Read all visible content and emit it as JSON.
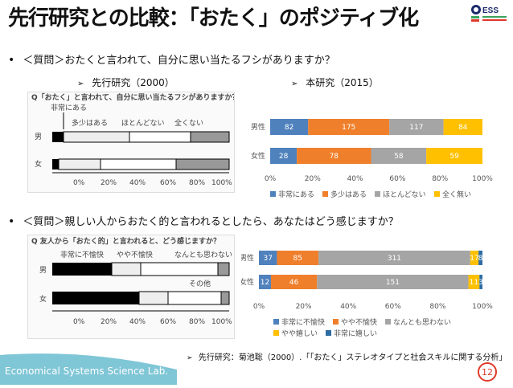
{
  "slide": {
    "title": "先行研究との比較：「おたく」のポジティブ化",
    "logo": {
      "text": "ESS",
      "colors": [
        "#1b2a6b",
        "#3aa35b",
        "#e0392a"
      ]
    },
    "page_number": "12",
    "footer_text": "Economical Systems Science Lab.",
    "footer_color": "#7fc6d6"
  },
  "q1": {
    "bullet": "•",
    "text": "＜質問＞おたくと言われて、自分に思い当たるフシがありますか？",
    "prev_label": "先行研究（2000）",
    "curr_label": "本研究（2015）",
    "scan": {
      "header": "Q「おたく」と言われて、自分に思い当たるフシがありますか？",
      "row_labels": [
        "男",
        "女"
      ],
      "legend_labels": [
        "非常にある",
        "多少はある",
        "ほとんどない",
        "全くない"
      ],
      "axis_labels": [
        "0%",
        "20%",
        "40%",
        "60%",
        "80%",
        "100%"
      ]
    }
  },
  "q2": {
    "bullet": "•",
    "text": "＜質問＞親しい人からおたく的と言われるとしたら、あなたはどう感じますか？",
    "scan": {
      "header": "Q 友人から「おたく的」と言われると、どう感じますか？",
      "row_labels": [
        "男",
        "女"
      ],
      "legend_labels": [
        "非常に不愉快",
        "やや不愉快",
        "なんとも思わない",
        "その他"
      ],
      "axis_labels": [
        "0%",
        "20%",
        "40%",
        "60%",
        "80%",
        "100%"
      ]
    },
    "reference": "先行研究：菊池聡（2000）.「「おたく」ステレオタイプと社会スキルに関する分析」"
  },
  "chart_data": [
    {
      "type": "bar",
      "stacked": true,
      "orientation": "horizontal",
      "percent_scale": true,
      "categories": [
        "男性",
        "女性"
      ],
      "series": [
        {
          "name": "非常にある",
          "values": [
            82,
            28
          ],
          "color": "#4f81bd"
        },
        {
          "name": "多少はある",
          "values": [
            175,
            78
          ],
          "color": "#f07f2b"
        },
        {
          "name": "ほとんどない",
          "values": [
            117,
            58
          ],
          "color": "#a5a5a5"
        },
        {
          "name": "全く無い",
          "values": [
            84,
            59
          ],
          "color": "#ffc000"
        }
      ],
      "xticks": [
        "0%",
        "20%",
        "40%",
        "60%",
        "80%",
        "100%"
      ],
      "legend": "bottom",
      "grid": false
    },
    {
      "type": "bar",
      "stacked": true,
      "orientation": "horizontal",
      "percent_scale": true,
      "categories": [
        "男性",
        "女性"
      ],
      "series": [
        {
          "name": "非常に不愉快",
          "values": [
            37,
            12
          ],
          "color": "#4f81bd"
        },
        {
          "name": "やや不愉快",
          "values": [
            85,
            46
          ],
          "color": "#f07f2b"
        },
        {
          "name": "なんとも思わない",
          "values": [
            311,
            151
          ],
          "color": "#a5a5a5"
        },
        {
          "name": "やや嬉しい",
          "values": [
            17,
            11
          ],
          "color": "#ffc000"
        },
        {
          "name": "非常に嬉しい",
          "values": [
            8,
            3
          ],
          "color": "#2e6ca4"
        }
      ],
      "xticks": [
        "0%",
        "20%",
        "40%",
        "60%",
        "80%",
        "100%"
      ],
      "legend": "bottom",
      "grid": false
    }
  ]
}
